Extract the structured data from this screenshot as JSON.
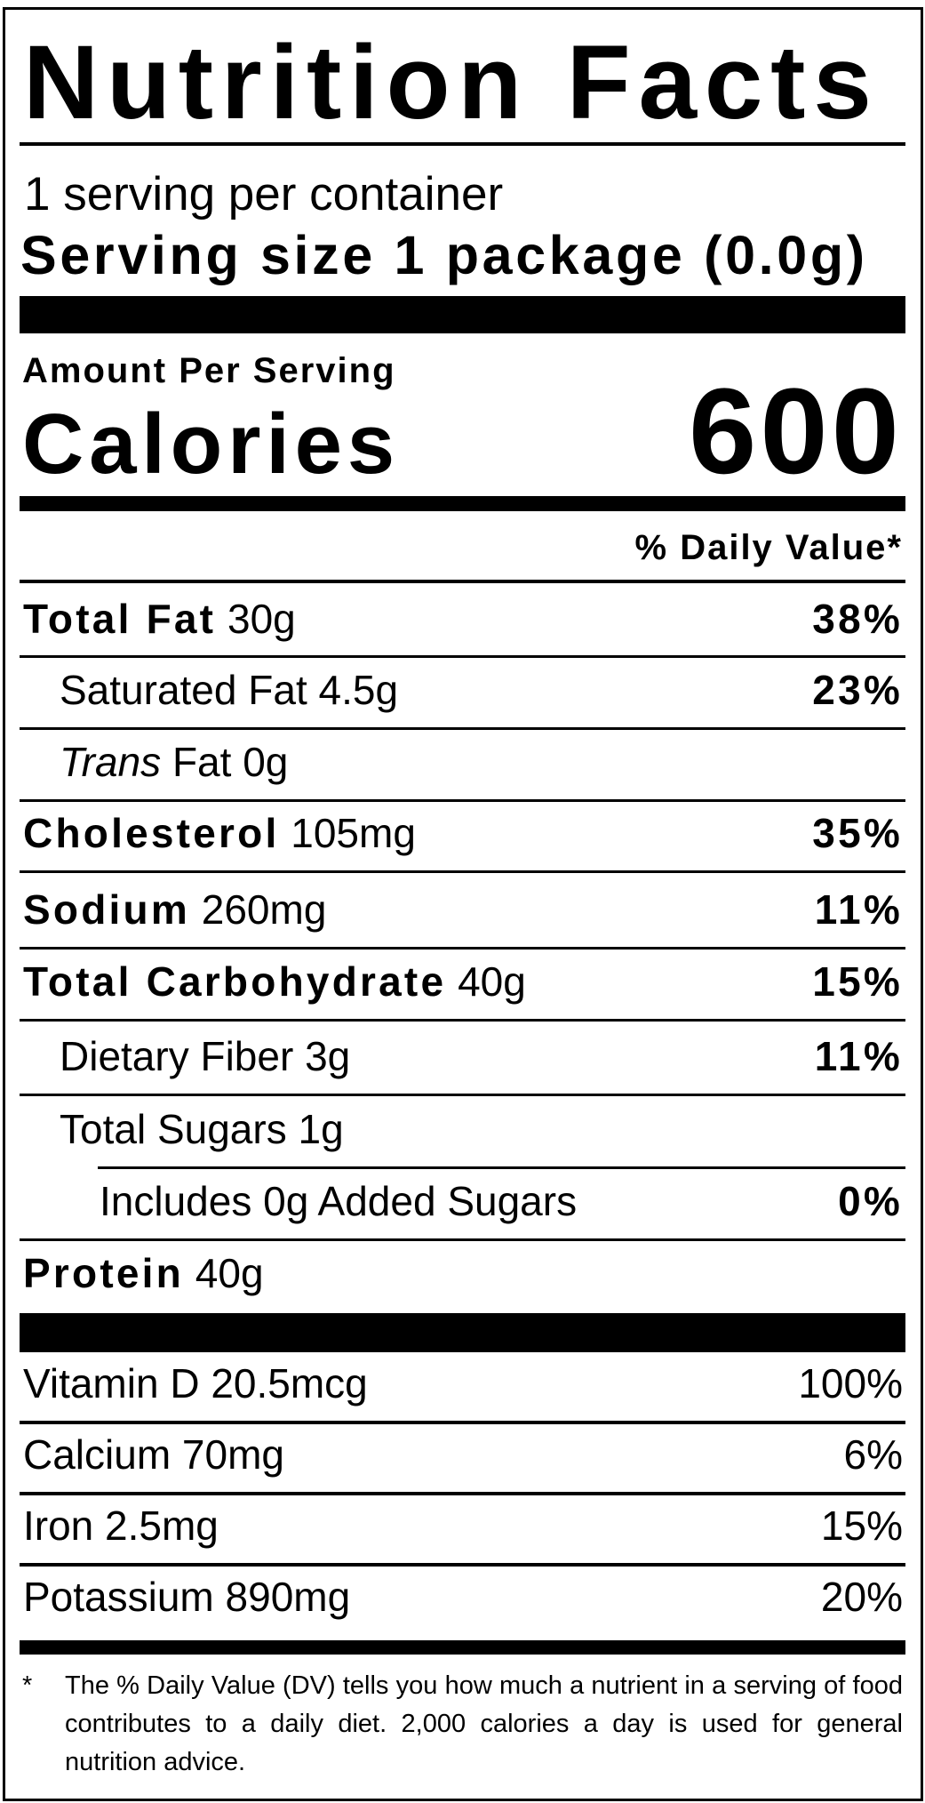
{
  "title": "Nutrition Facts",
  "servings_per_container": "1 serving per container",
  "serving_size": "Serving size 1 package (0.0g)",
  "amount_per_serving": "Amount Per Serving",
  "calories_label": "Calories",
  "calories_value": "600",
  "daily_value_header": "% Daily Value*",
  "nutrients": [
    {
      "label": "Total Fat",
      "amount": "30g",
      "dv": "38%",
      "bold": true,
      "indent": 0
    },
    {
      "label": "Saturated Fat",
      "amount": "4.5g",
      "dv": "23%",
      "bold": false,
      "indent": 1
    },
    {
      "label_italic": "Trans",
      "label": "Fat",
      "amount": "0g",
      "dv": "",
      "bold": false,
      "indent": 1
    },
    {
      "label": "Cholesterol",
      "amount": "105mg",
      "dv": "35%",
      "bold": true,
      "indent": 0
    },
    {
      "label": "Sodium",
      "amount": "260mg",
      "dv": "11%",
      "bold": true,
      "indent": 0
    },
    {
      "label": "Total Carbohydrate",
      "amount": "40g",
      "dv": "15%",
      "bold": true,
      "indent": 0
    },
    {
      "label": "Dietary Fiber",
      "amount": "3g",
      "dv": "11%",
      "bold": false,
      "indent": 1
    },
    {
      "label": "Total Sugars",
      "amount": "1g",
      "dv": "",
      "bold": false,
      "indent": 1
    },
    {
      "label": "Includes 0g Added Sugars",
      "amount": "",
      "dv": "0%",
      "bold": false,
      "indent": 2
    },
    {
      "label": "Protein",
      "amount": "40g",
      "dv": "",
      "bold": true,
      "indent": 0
    }
  ],
  "vitamins": [
    {
      "label": "Vitamin D 20.5mcg",
      "dv": "100%"
    },
    {
      "label": "Calcium 70mg",
      "dv": "6%"
    },
    {
      "label": "Iron 2.5mg",
      "dv": "15%"
    },
    {
      "label": "Potassium 890mg",
      "dv": "20%"
    }
  ],
  "footnote_marker": "*",
  "footnote": "The % Daily Value (DV) tells you how much a nutrient in a serving of food contributes to a daily diet. 2,000 calories a day is used for general nutrition advice."
}
